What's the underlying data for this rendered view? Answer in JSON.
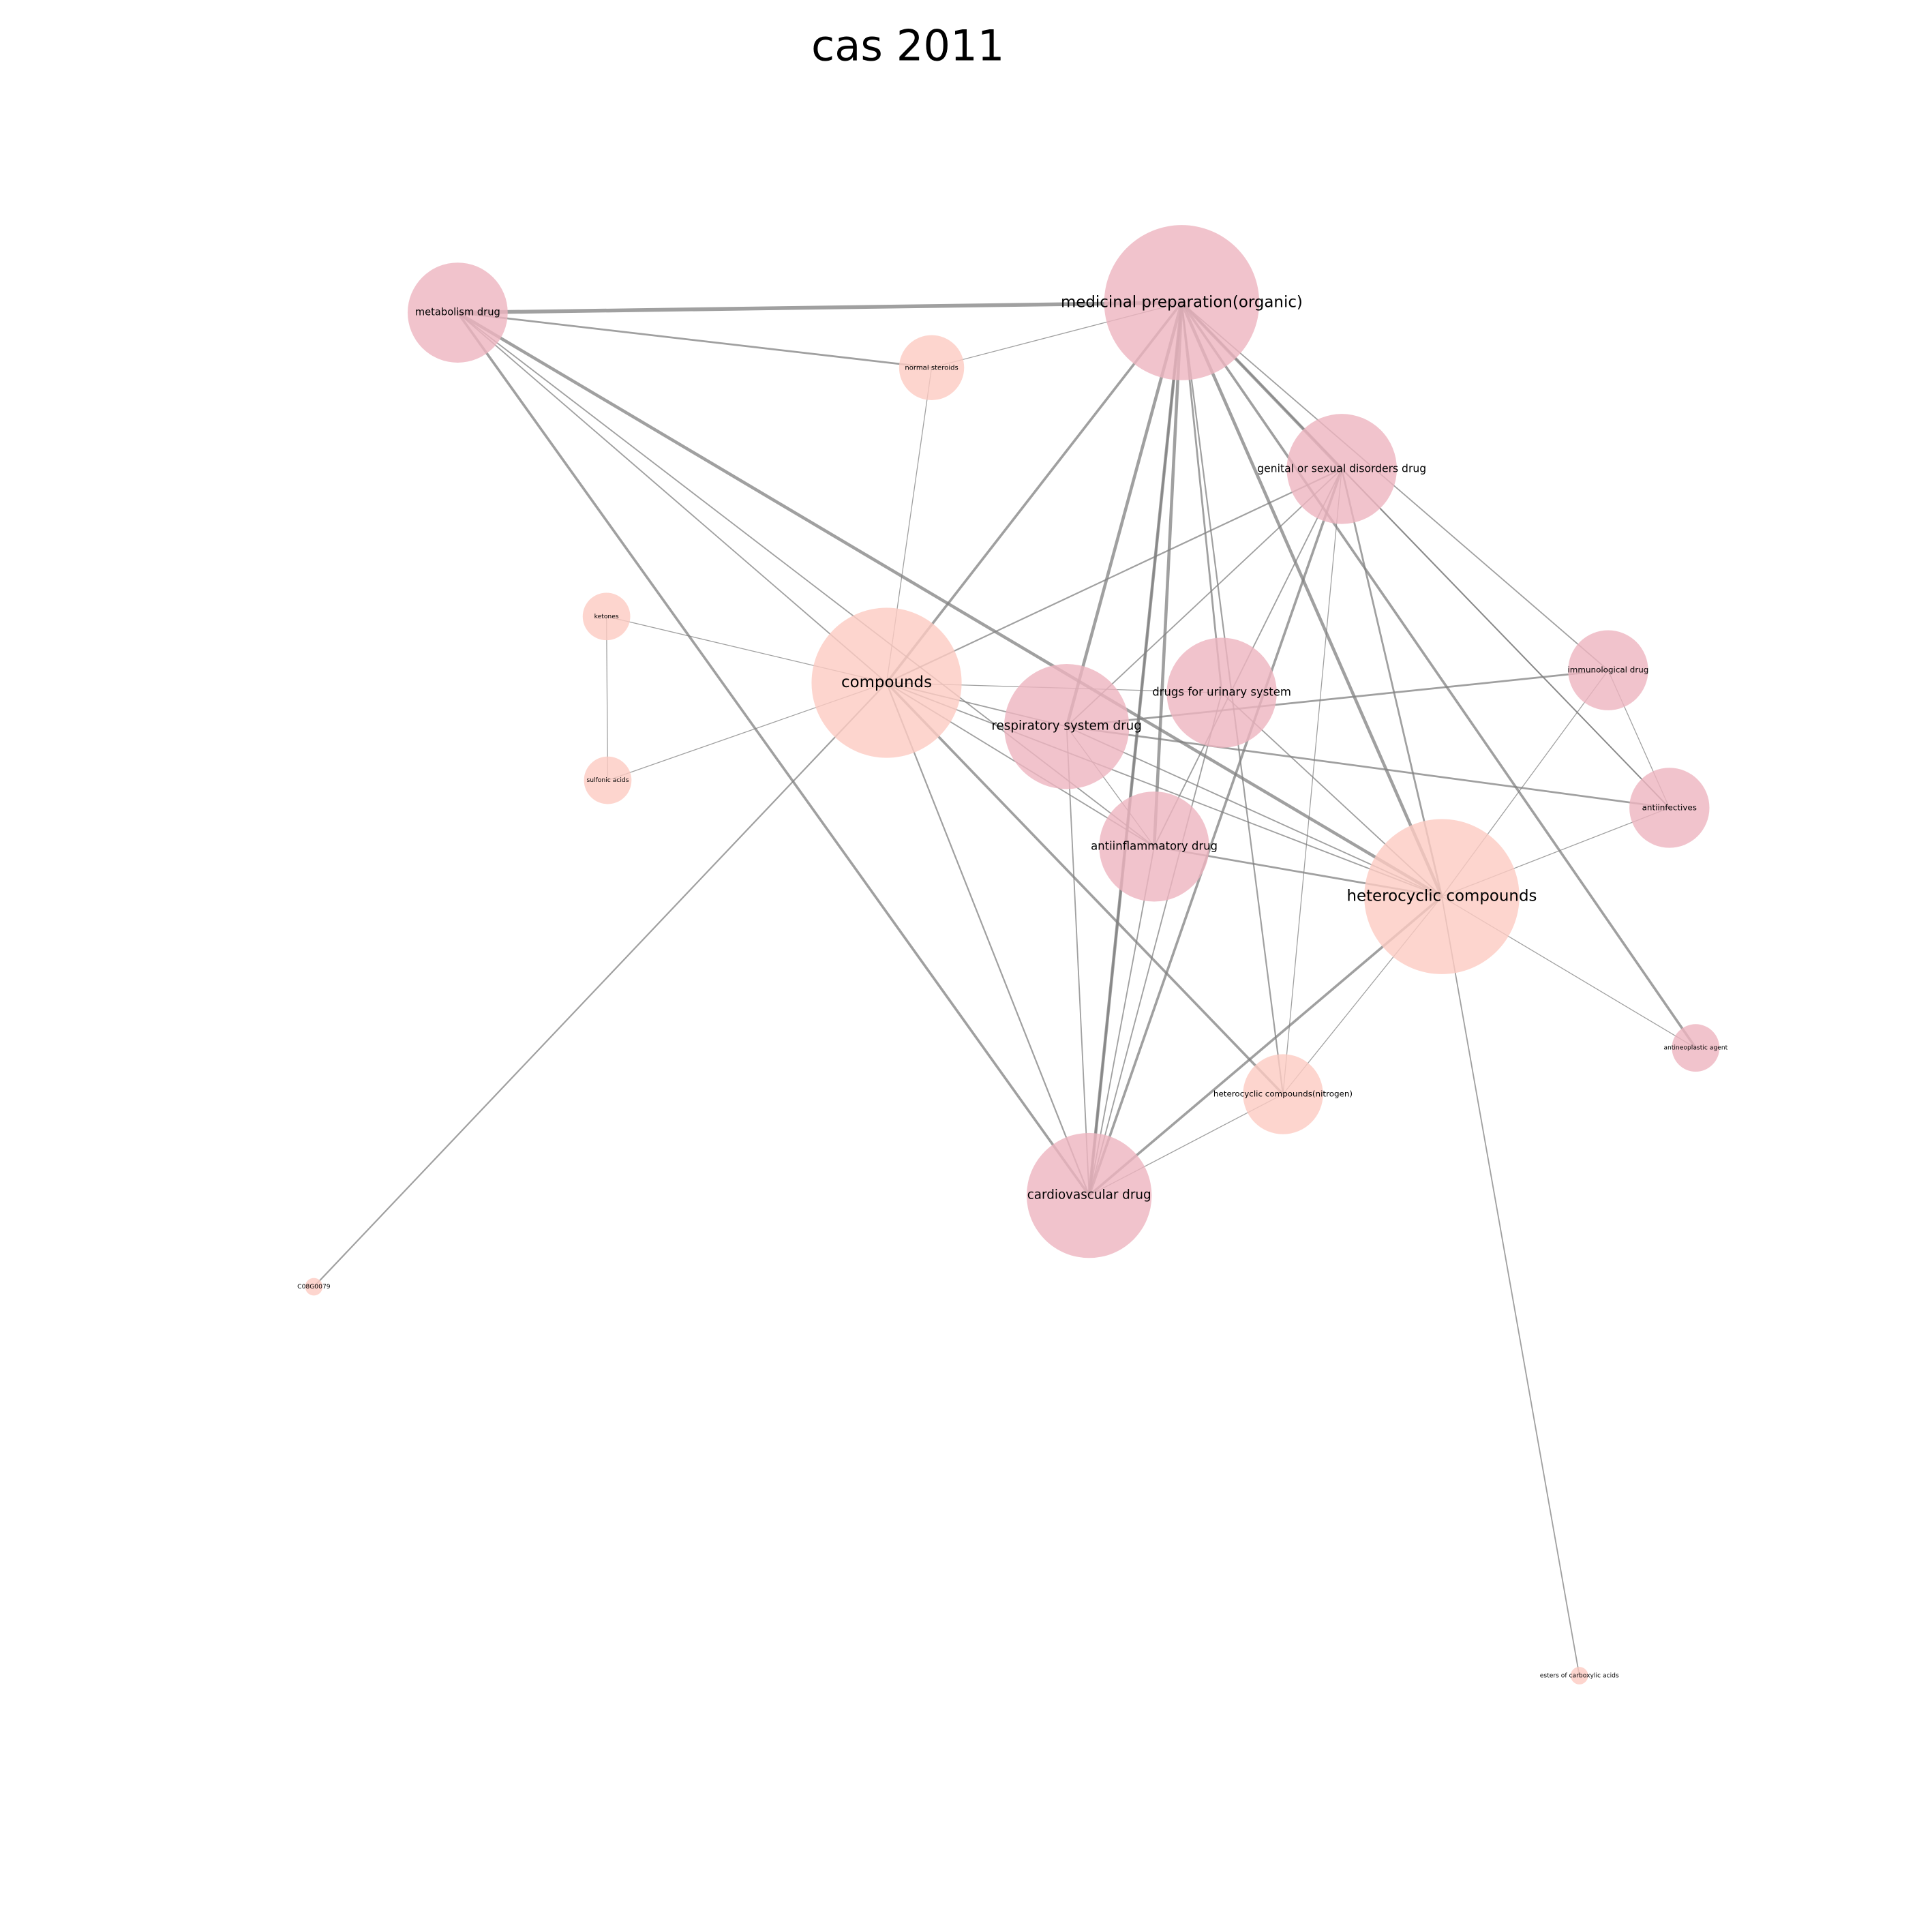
{
  "header": {
    "title": "cas 2011"
  },
  "nodes": [
    {
      "label": "medicinal preparation(organic)"
    },
    {
      "label": "metabolism drug"
    },
    {
      "label": "normal steroids"
    },
    {
      "label": "genital or sexual disorders drug"
    },
    {
      "label": "ketones"
    },
    {
      "label": "compounds"
    },
    {
      "label": "respiratory system drug"
    },
    {
      "label": "drugs for urinary system"
    },
    {
      "label": "immunological drug"
    },
    {
      "label": "sulfonic acids"
    },
    {
      "label": "antiinfectives"
    },
    {
      "label": "antiinflammatory drug"
    },
    {
      "label": "heterocyclic compounds"
    },
    {
      "label": "antineoplastic agent"
    },
    {
      "label": "heterocyclic compounds(nitrogen)"
    },
    {
      "label": "cardiovascular drug"
    },
    {
      "label": "C08G0079"
    },
    {
      "label": "esters of carboxylic acids"
    }
  ]
}
